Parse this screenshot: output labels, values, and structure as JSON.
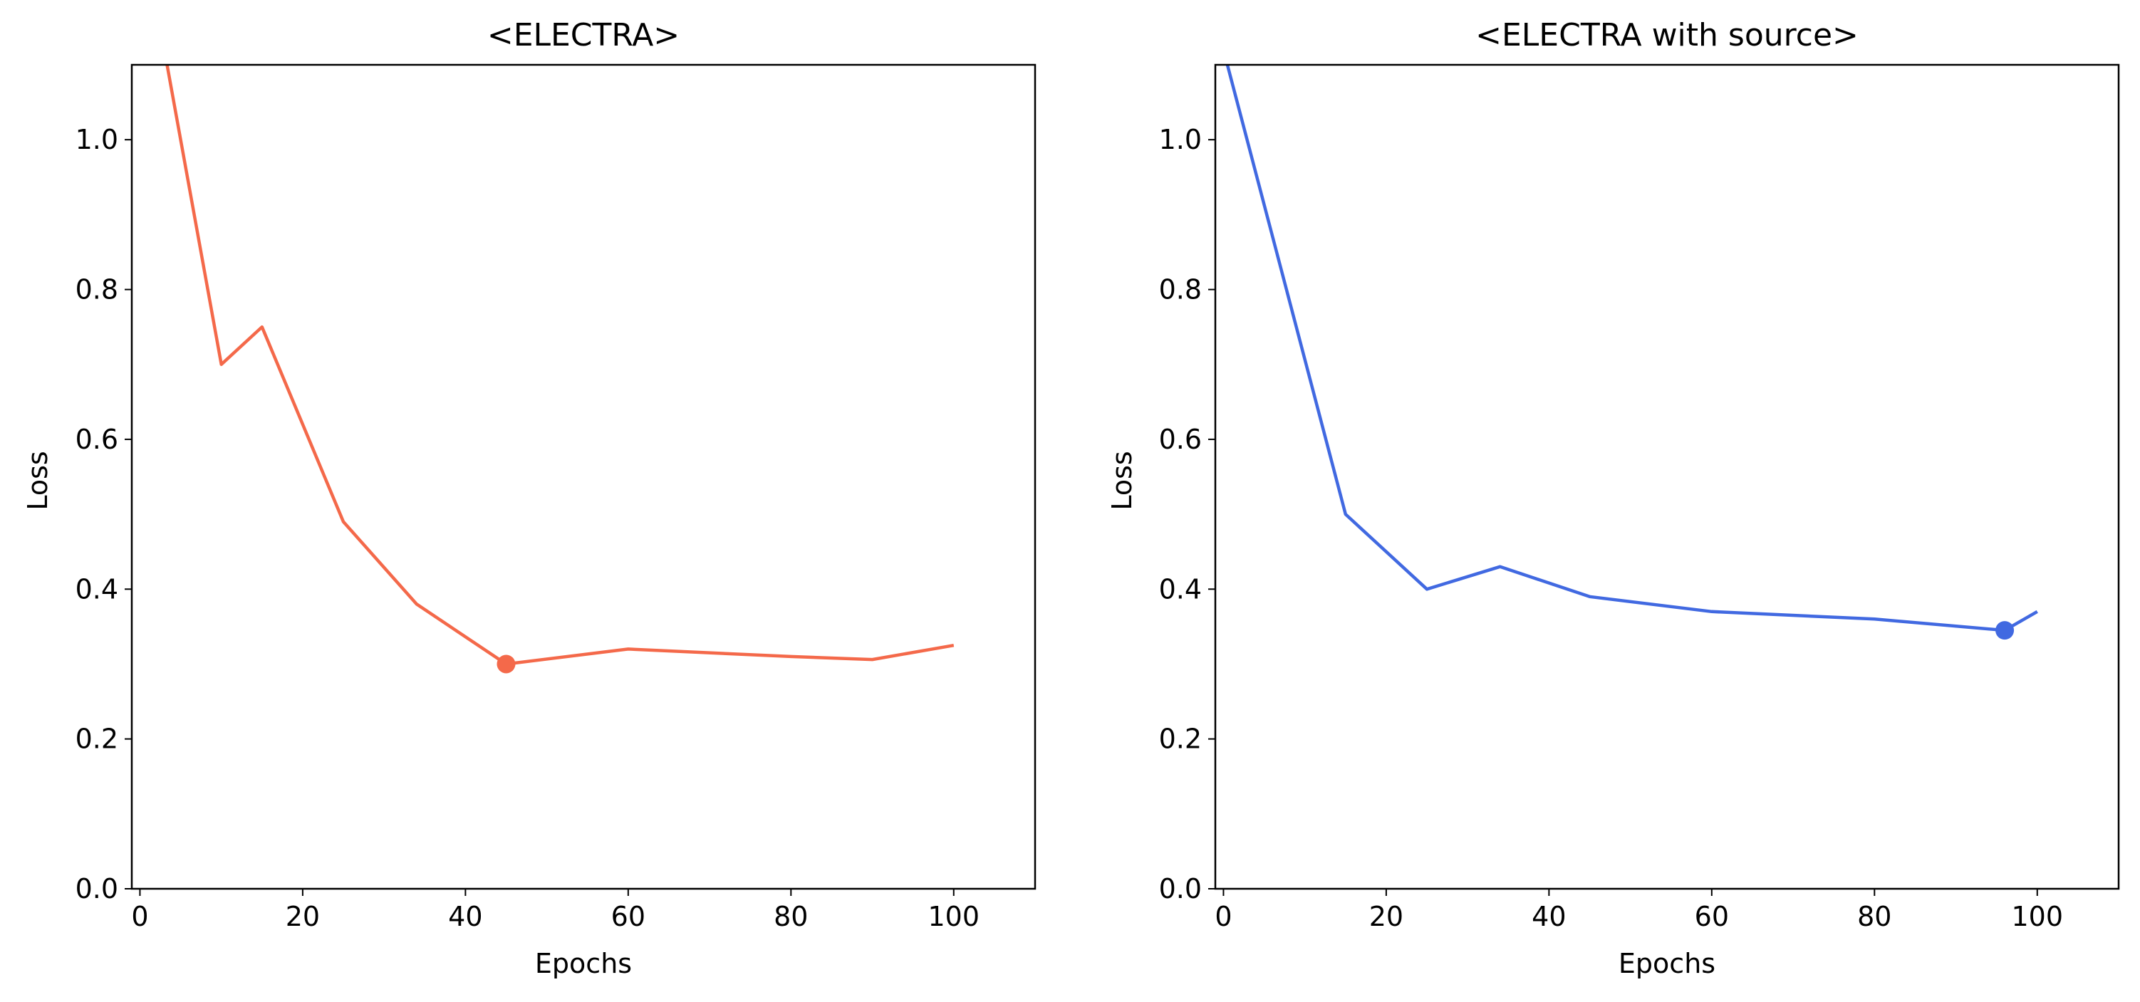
{
  "chart_data": [
    {
      "type": "line",
      "title": "<ELECTRA>",
      "xlabel": "Epochs",
      "ylabel": "Loss",
      "xlim": [
        -1,
        110
      ],
      "ylim": [
        0,
        1.1
      ],
      "xticks": [
        0,
        20,
        40,
        60,
        80,
        100
      ],
      "yticks": [
        0.0,
        0.2,
        0.4,
        0.6,
        0.8,
        1.0
      ],
      "xtick_labels": [
        "0",
        "20",
        "40",
        "60",
        "80",
        "100"
      ],
      "ytick_labels": [
        "0.0",
        "0.2",
        "0.4",
        "0.6",
        "0.8",
        "1.0"
      ],
      "grid": false,
      "color": "#f4694a",
      "x": [
        0,
        10,
        15,
        25,
        34,
        45,
        60,
        80,
        90,
        100
      ],
      "y": [
        1.3,
        0.7,
        0.75,
        0.49,
        0.38,
        0.3,
        0.32,
        0.31,
        0.306,
        0.325
      ],
      "marker_point": {
        "x": 45,
        "y": 0.3
      }
    },
    {
      "type": "line",
      "title": "<ELECTRA with source>",
      "xlabel": "Epochs",
      "ylabel": "Loss",
      "xlim": [
        -1,
        110
      ],
      "ylim": [
        0,
        1.1
      ],
      "xticks": [
        0,
        20,
        40,
        60,
        80,
        100
      ],
      "yticks": [
        0.0,
        0.2,
        0.4,
        0.6,
        0.8,
        1.0
      ],
      "xtick_labels": [
        "0",
        "20",
        "40",
        "60",
        "80",
        "100"
      ],
      "ytick_labels": [
        "0.0",
        "0.2",
        "0.4",
        "0.6",
        "0.8",
        "1.0"
      ],
      "grid": false,
      "color": "#4169e1",
      "x": [
        0,
        15,
        25,
        34,
        45,
        60,
        80,
        96,
        100
      ],
      "y": [
        1.12,
        0.5,
        0.4,
        0.43,
        0.39,
        0.37,
        0.36,
        0.345,
        0.37
      ],
      "marker_point": {
        "x": 96,
        "y": 0.345
      }
    }
  ]
}
